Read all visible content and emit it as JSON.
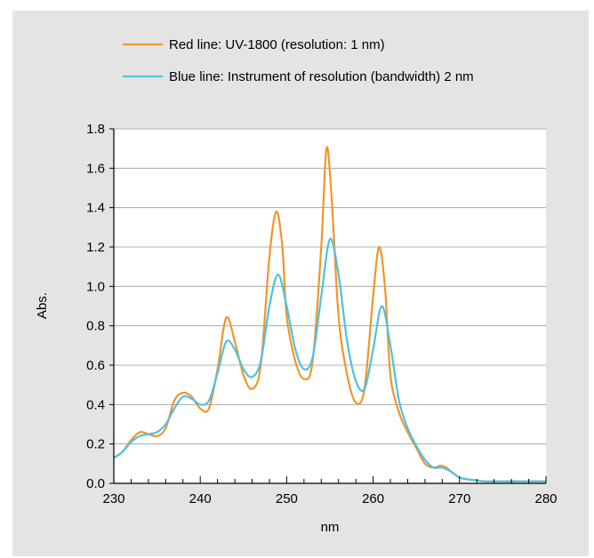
{
  "chart_data": {
    "type": "line",
    "title": "",
    "xlabel": "nm",
    "ylabel": "Abs.",
    "xlim": [
      230,
      280
    ],
    "ylim": [
      0.0,
      1.8
    ],
    "x_ticks": [
      "230",
      "240",
      "250",
      "260",
      "270",
      "280"
    ],
    "y_ticks": [
      "0.0",
      "0.2",
      "0.4",
      "0.6",
      "0.8",
      "1.0",
      "1.2",
      "1.4",
      "1.6",
      "1.8"
    ],
    "grid": "horizontal",
    "legend_position": "top",
    "series": [
      {
        "name": "Red line: UV-1800 (resolution: 1 nm)",
        "color": "#f0962a",
        "x": [
          230,
          231,
          232,
          233,
          234,
          235,
          236,
          237,
          238,
          239,
          240,
          241,
          242,
          243,
          244,
          245,
          246,
          247,
          248,
          248.8,
          249.5,
          250,
          251,
          252,
          253,
          254,
          254.6,
          255.2,
          256,
          257,
          258,
          259,
          260,
          260.7,
          261.4,
          262,
          263,
          264,
          265,
          266,
          267,
          267.8,
          268.5,
          269,
          270,
          271,
          272,
          273,
          275,
          278,
          280
        ],
        "values": [
          0.13,
          0.16,
          0.22,
          0.26,
          0.25,
          0.24,
          0.28,
          0.42,
          0.46,
          0.44,
          0.38,
          0.38,
          0.58,
          0.84,
          0.72,
          0.55,
          0.48,
          0.6,
          1.15,
          1.38,
          1.2,
          0.85,
          0.62,
          0.53,
          0.62,
          1.2,
          1.7,
          1.45,
          0.85,
          0.55,
          0.41,
          0.48,
          0.95,
          1.2,
          0.98,
          0.55,
          0.36,
          0.26,
          0.18,
          0.1,
          0.08,
          0.09,
          0.08,
          0.06,
          0.03,
          0.02,
          0.015,
          0.01,
          0.01,
          0.01,
          0.01
        ]
      },
      {
        "name": "Blue line: Instrument of resolution (bandwidth) 2 nm",
        "color": "#4fc0e3",
        "x": [
          230,
          231,
          232,
          233,
          234,
          235,
          236,
          237,
          238,
          239,
          240,
          241,
          242,
          243,
          244,
          245,
          246,
          247,
          248,
          249,
          250,
          251,
          252,
          253,
          254,
          255,
          256,
          257,
          258,
          259,
          260,
          261,
          262,
          263,
          264,
          265,
          266,
          267,
          268,
          269,
          270,
          271,
          272,
          273,
          275,
          278,
          280
        ],
        "values": [
          0.13,
          0.16,
          0.21,
          0.24,
          0.25,
          0.26,
          0.3,
          0.38,
          0.44,
          0.43,
          0.4,
          0.42,
          0.56,
          0.72,
          0.68,
          0.58,
          0.54,
          0.62,
          0.9,
          1.06,
          0.9,
          0.68,
          0.58,
          0.64,
          0.95,
          1.24,
          1.06,
          0.72,
          0.52,
          0.48,
          0.68,
          0.9,
          0.7,
          0.42,
          0.28,
          0.19,
          0.12,
          0.08,
          0.08,
          0.06,
          0.03,
          0.02,
          0.015,
          0.01,
          0.01,
          0.01,
          0.01
        ]
      }
    ]
  },
  "colors": {
    "background": "#e4e4e4",
    "plot_background": "#ffffff",
    "gridline": "#9a9a9a",
    "axis": "#000000"
  }
}
